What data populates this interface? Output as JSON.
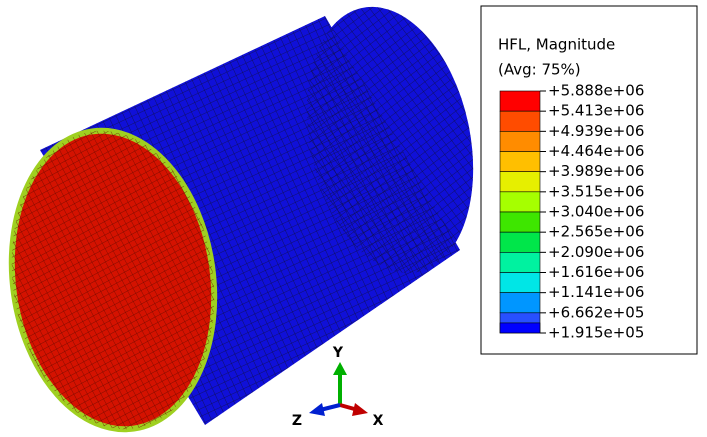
{
  "legend": {
    "title": "HFL, Magnitude",
    "subtitle": "(Avg: 75%)",
    "labels": [
      "+5.888e+06",
      "+5.413e+06",
      "+4.939e+06",
      "+4.464e+06",
      "+3.989e+06",
      "+3.515e+06",
      "+3.040e+06",
      "+2.565e+06",
      "+2.090e+06",
      "+1.616e+06",
      "+1.141e+06",
      "+6.662e+05",
      "+1.915e+05"
    ],
    "colors": [
      "#ff0000",
      "#ff4c00",
      "#ff8c00",
      "#ffbf00",
      "#e6ef00",
      "#a6ff00",
      "#3ee600",
      "#00e64a",
      "#00f2a0",
      "#00e6e6",
      "#0096ff",
      "#2850ff",
      "#0000ff"
    ]
  },
  "triad": {
    "y": "Y",
    "z": "Z",
    "x": "X"
  }
}
